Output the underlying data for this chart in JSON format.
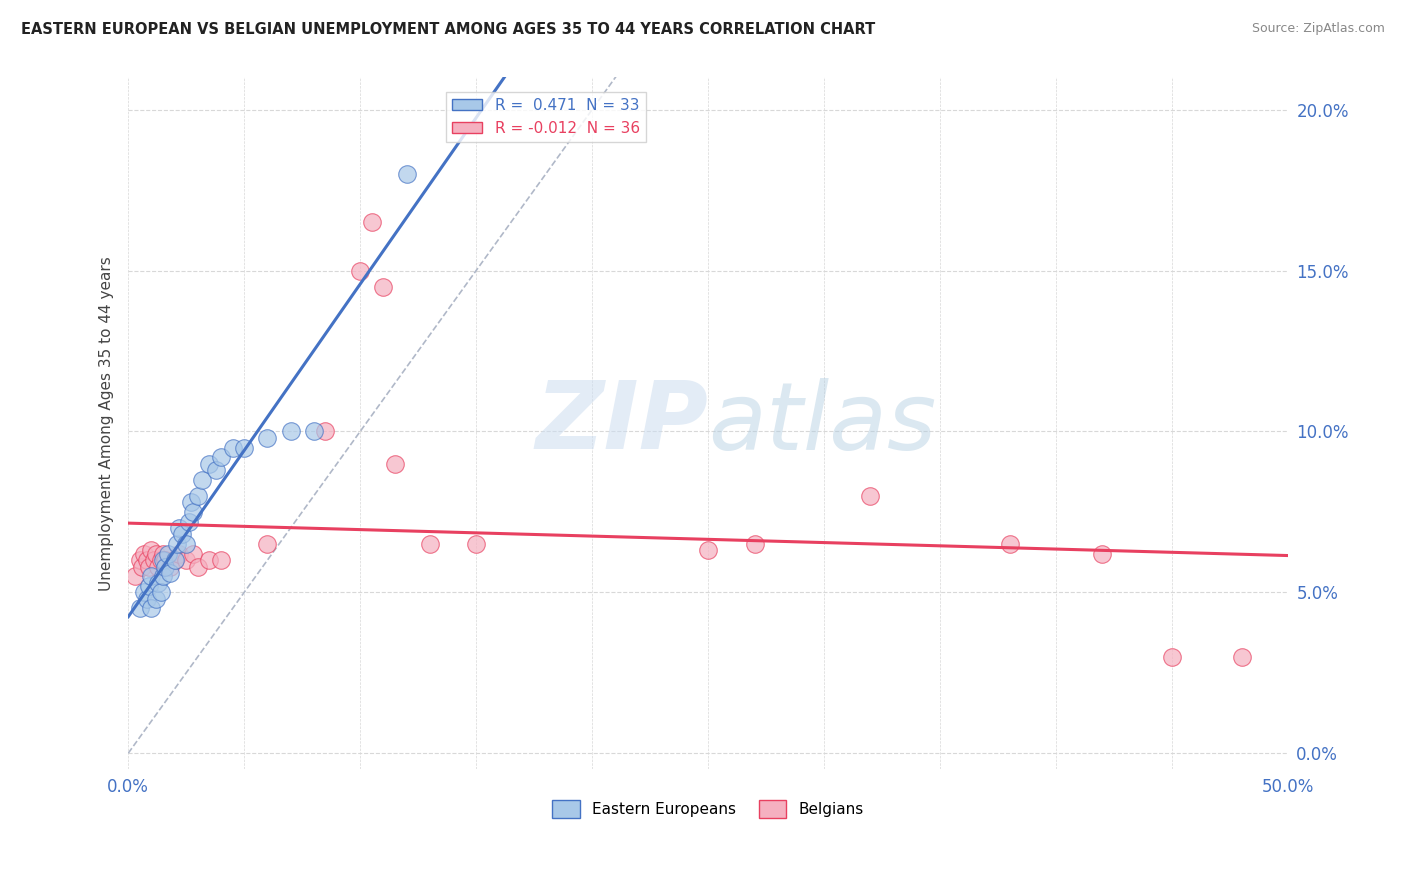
{
  "title": "EASTERN EUROPEAN VS BELGIAN UNEMPLOYMENT AMONG AGES 35 TO 44 YEARS CORRELATION CHART",
  "source": "Source: ZipAtlas.com",
  "ylabel": "Unemployment Among Ages 35 to 44 years",
  "xlim": [
    0.0,
    0.5
  ],
  "ylim": [
    -0.005,
    0.21
  ],
  "xticks": [
    0.0,
    0.05,
    0.1,
    0.15,
    0.2,
    0.25,
    0.3,
    0.35,
    0.4,
    0.45,
    0.5
  ],
  "xtick_labels_show": [
    "0.0%",
    "",
    "",
    "",
    "",
    "",
    "",
    "",
    "",
    "",
    "50.0%"
  ],
  "yticks": [
    0.0,
    0.05,
    0.1,
    0.15,
    0.2
  ],
  "ytick_labels": [
    "0.0%",
    "5.0%",
    "10.0%",
    "15.0%",
    "20.0%"
  ],
  "R_eastern": 0.471,
  "N_eastern": 33,
  "R_belgian": -0.012,
  "N_belgian": 36,
  "eastern_color": "#a8c8e8",
  "belgian_color": "#f5b0c0",
  "trendline_eastern_color": "#4472c4",
  "trendline_belgian_color": "#e84060",
  "diagonal_color": "#b0b8c8",
  "watermark_zip": "ZIP",
  "watermark_atlas": "atlas",
  "eastern_x": [
    0.005,
    0.007,
    0.008,
    0.009,
    0.01,
    0.01,
    0.012,
    0.013,
    0.014,
    0.015,
    0.015,
    0.016,
    0.017,
    0.018,
    0.02,
    0.021,
    0.022,
    0.023,
    0.025,
    0.026,
    0.027,
    0.028,
    0.03,
    0.032,
    0.035,
    0.038,
    0.04,
    0.045,
    0.05,
    0.06,
    0.07,
    0.08,
    0.12
  ],
  "eastern_y": [
    0.045,
    0.05,
    0.048,
    0.052,
    0.045,
    0.055,
    0.048,
    0.053,
    0.05,
    0.055,
    0.06,
    0.058,
    0.062,
    0.056,
    0.06,
    0.065,
    0.07,
    0.068,
    0.065,
    0.072,
    0.078,
    0.075,
    0.08,
    0.085,
    0.09,
    0.088,
    0.092,
    0.095,
    0.095,
    0.098,
    0.1,
    0.1,
    0.18
  ],
  "belgian_x": [
    0.003,
    0.005,
    0.006,
    0.007,
    0.008,
    0.009,
    0.01,
    0.011,
    0.012,
    0.013,
    0.014,
    0.015,
    0.016,
    0.018,
    0.02,
    0.022,
    0.025,
    0.028,
    0.03,
    0.035,
    0.04,
    0.06,
    0.085,
    0.1,
    0.105,
    0.11,
    0.115,
    0.13,
    0.15,
    0.25,
    0.27,
    0.32,
    0.38,
    0.42,
    0.45,
    0.48
  ],
  "belgian_y": [
    0.055,
    0.06,
    0.058,
    0.062,
    0.06,
    0.058,
    0.063,
    0.06,
    0.062,
    0.058,
    0.06,
    0.062,
    0.06,
    0.058,
    0.06,
    0.062,
    0.06,
    0.062,
    0.058,
    0.06,
    0.06,
    0.065,
    0.1,
    0.15,
    0.165,
    0.145,
    0.09,
    0.065,
    0.065,
    0.063,
    0.065,
    0.08,
    0.065,
    0.062,
    0.03,
    0.03
  ],
  "background_color": "#ffffff",
  "grid_color": "#d8d8d8"
}
